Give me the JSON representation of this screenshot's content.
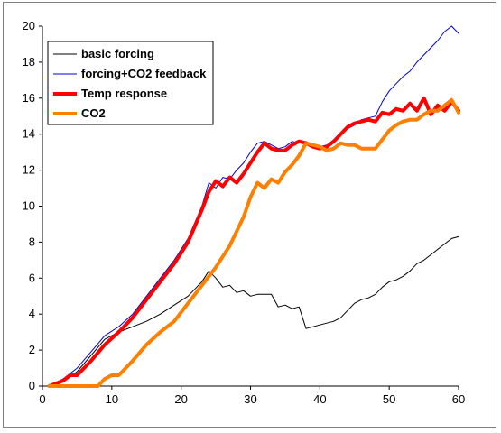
{
  "chart_data": {
    "type": "line",
    "title": "",
    "xlabel": "",
    "ylabel": "",
    "xlim": [
      0,
      60
    ],
    "ylim": [
      0,
      20
    ],
    "x_ticks": [
      0,
      10,
      20,
      30,
      40,
      50,
      60
    ],
    "y_ticks": [
      0,
      2,
      4,
      6,
      8,
      10,
      12,
      14,
      16,
      18,
      20
    ],
    "grid": false,
    "legend_position": "top-left",
    "series": [
      {
        "name": "basic forcing",
        "color": "#000000",
        "width": 1,
        "points": [
          [
            1,
            0
          ],
          [
            3,
            0.3
          ],
          [
            5,
            0.8
          ],
          [
            7,
            1.7
          ],
          [
            9,
            2.6
          ],
          [
            11,
            3.0
          ],
          [
            13,
            3.3
          ],
          [
            15,
            3.6
          ],
          [
            17,
            4.0
          ],
          [
            19,
            4.5
          ],
          [
            21,
            5.0
          ],
          [
            23,
            5.8
          ],
          [
            24,
            6.4
          ],
          [
            25,
            6.0
          ],
          [
            26,
            5.5
          ],
          [
            27,
            5.6
          ],
          [
            28,
            5.2
          ],
          [
            29,
            5.3
          ],
          [
            30,
            5.0
          ],
          [
            31,
            5.1
          ],
          [
            33,
            5.1
          ],
          [
            34,
            4.4
          ],
          [
            35,
            4.5
          ],
          [
            36,
            4.3
          ],
          [
            37,
            4.4
          ],
          [
            38,
            3.2
          ],
          [
            39,
            3.3
          ],
          [
            40,
            3.4
          ],
          [
            42,
            3.6
          ],
          [
            43,
            3.8
          ],
          [
            44,
            4.2
          ],
          [
            45,
            4.6
          ],
          [
            46,
            4.8
          ],
          [
            47,
            4.9
          ],
          [
            48,
            5.1
          ],
          [
            49,
            5.5
          ],
          [
            50,
            5.8
          ],
          [
            51,
            5.9
          ],
          [
            52,
            6.1
          ],
          [
            53,
            6.4
          ],
          [
            54,
            6.8
          ],
          [
            55,
            7.0
          ],
          [
            56,
            7.3
          ],
          [
            57,
            7.6
          ],
          [
            58,
            7.9
          ],
          [
            59,
            8.2
          ],
          [
            60,
            8.3
          ]
        ]
      },
      {
        "name": "forcing+CO2 feedback",
        "color": "#0000cc",
        "width": 1,
        "points": [
          [
            1,
            0
          ],
          [
            3,
            0.4
          ],
          [
            5,
            1.0
          ],
          [
            7,
            1.9
          ],
          [
            9,
            2.8
          ],
          [
            11,
            3.3
          ],
          [
            13,
            4.0
          ],
          [
            15,
            5.0
          ],
          [
            17,
            6.0
          ],
          [
            19,
            7.0
          ],
          [
            21,
            8.2
          ],
          [
            23,
            10.0
          ],
          [
            24,
            11.3
          ],
          [
            25,
            11.0
          ],
          [
            26,
            11.6
          ],
          [
            27,
            11.5
          ],
          [
            28,
            12.0
          ],
          [
            29,
            12.4
          ],
          [
            30,
            13.0
          ],
          [
            31,
            13.5
          ],
          [
            32,
            13.6
          ],
          [
            33,
            13.4
          ],
          [
            34,
            13.2
          ],
          [
            35,
            13.3
          ],
          [
            36,
            13.6
          ],
          [
            37,
            13.5
          ],
          [
            38,
            13.6
          ],
          [
            39,
            13.4
          ],
          [
            40,
            13.3
          ],
          [
            41,
            13.4
          ],
          [
            42,
            13.6
          ],
          [
            43,
            14.0
          ],
          [
            44,
            14.3
          ],
          [
            45,
            14.5
          ],
          [
            46,
            14.8
          ],
          [
            47,
            14.9
          ],
          [
            48,
            15.0
          ],
          [
            49,
            15.8
          ],
          [
            50,
            16.4
          ],
          [
            51,
            16.8
          ],
          [
            52,
            17.2
          ],
          [
            53,
            17.5
          ],
          [
            54,
            18.0
          ],
          [
            55,
            18.4
          ],
          [
            56,
            18.8
          ],
          [
            57,
            19.2
          ],
          [
            58,
            19.7
          ],
          [
            59,
            20.0
          ],
          [
            60,
            19.6
          ]
        ]
      },
      {
        "name": "Temp response",
        "color": "#ff0000",
        "width": 4,
        "points": [
          [
            1,
            0
          ],
          [
            3,
            0.3
          ],
          [
            4,
            0.6
          ],
          [
            5,
            0.6
          ],
          [
            7,
            1.4
          ],
          [
            9,
            2.3
          ],
          [
            11,
            3.0
          ],
          [
            13,
            3.8
          ],
          [
            15,
            4.8
          ],
          [
            17,
            5.8
          ],
          [
            19,
            6.8
          ],
          [
            21,
            8.0
          ],
          [
            23,
            9.8
          ],
          [
            24,
            10.8
          ],
          [
            25,
            11.4
          ],
          [
            26,
            11.1
          ],
          [
            27,
            11.6
          ],
          [
            28,
            11.3
          ],
          [
            29,
            11.8
          ],
          [
            30,
            12.4
          ],
          [
            31,
            13.0
          ],
          [
            32,
            13.5
          ],
          [
            33,
            13.2
          ],
          [
            34,
            13.1
          ],
          [
            35,
            13.1
          ],
          [
            36,
            13.4
          ],
          [
            37,
            13.6
          ],
          [
            38,
            13.5
          ],
          [
            39,
            13.3
          ],
          [
            40,
            13.2
          ],
          [
            41,
            13.3
          ],
          [
            42,
            13.6
          ],
          [
            43,
            14.0
          ],
          [
            44,
            14.4
          ],
          [
            45,
            14.6
          ],
          [
            46,
            14.7
          ],
          [
            47,
            14.8
          ],
          [
            48,
            14.7
          ],
          [
            49,
            15.2
          ],
          [
            50,
            15.1
          ],
          [
            51,
            15.4
          ],
          [
            52,
            15.3
          ],
          [
            53,
            15.7
          ],
          [
            54,
            15.3
          ],
          [
            55,
            16.0
          ],
          [
            56,
            15.1
          ],
          [
            57,
            15.6
          ],
          [
            58,
            15.3
          ],
          [
            59,
            15.8
          ],
          [
            60,
            15.3
          ]
        ]
      },
      {
        "name": "CO2",
        "color": "#ff8000",
        "width": 4,
        "points": [
          [
            1,
            0
          ],
          [
            8,
            0
          ],
          [
            9,
            0.4
          ],
          [
            10,
            0.6
          ],
          [
            11,
            0.6
          ],
          [
            12,
            1.0
          ],
          [
            13,
            1.4
          ],
          [
            15,
            2.3
          ],
          [
            17,
            3.0
          ],
          [
            19,
            3.6
          ],
          [
            21,
            4.6
          ],
          [
            23,
            5.6
          ],
          [
            24,
            6.1
          ],
          [
            25,
            6.6
          ],
          [
            27,
            7.8
          ],
          [
            29,
            9.4
          ],
          [
            30,
            10.5
          ],
          [
            31,
            11.3
          ],
          [
            32,
            11.0
          ],
          [
            33,
            11.5
          ],
          [
            34,
            11.3
          ],
          [
            35,
            11.9
          ],
          [
            36,
            12.3
          ],
          [
            37,
            12.8
          ],
          [
            38,
            13.5
          ],
          [
            39,
            13.4
          ],
          [
            40,
            13.3
          ],
          [
            41,
            13.1
          ],
          [
            42,
            13.2
          ],
          [
            43,
            13.5
          ],
          [
            44,
            13.4
          ],
          [
            45,
            13.4
          ],
          [
            46,
            13.2
          ],
          [
            47,
            13.2
          ],
          [
            48,
            13.2
          ],
          [
            49,
            13.7
          ],
          [
            50,
            14.2
          ],
          [
            51,
            14.5
          ],
          [
            52,
            14.7
          ],
          [
            53,
            14.8
          ],
          [
            54,
            14.8
          ],
          [
            55,
            15.1
          ],
          [
            56,
            15.3
          ],
          [
            57,
            15.3
          ],
          [
            58,
            15.6
          ],
          [
            59,
            15.9
          ],
          [
            60,
            15.2
          ]
        ]
      }
    ]
  }
}
